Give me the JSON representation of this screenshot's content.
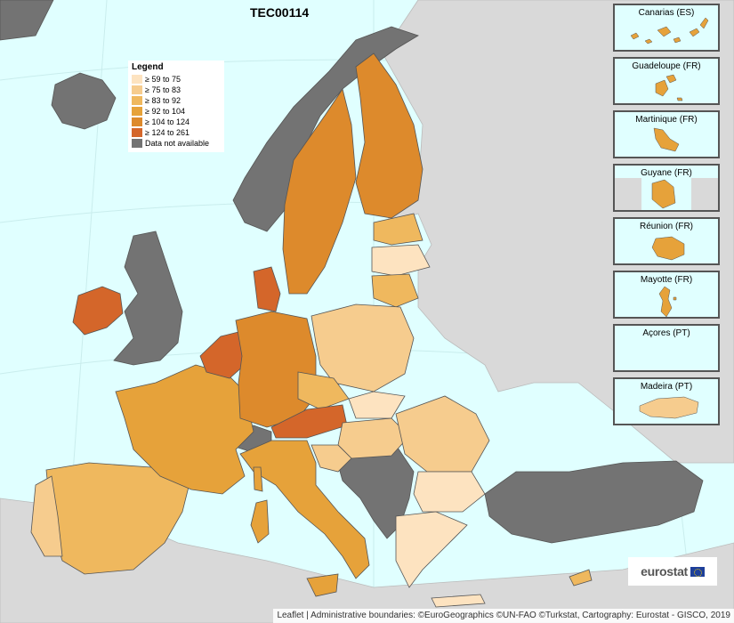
{
  "map": {
    "title": "TEC00114",
    "legend": {
      "title": "Legend",
      "items": [
        {
          "label": "≥ 59 to 75",
          "color": "#fde3c0"
        },
        {
          "label": "≥ 75 to 83",
          "color": "#f6cc8e"
        },
        {
          "label": "≥ 83 to 92",
          "color": "#efb85e"
        },
        {
          "label": "≥ 92 to 104",
          "color": "#e6a23a"
        },
        {
          "label": "≥ 104 to 124",
          "color": "#dd8a2c"
        },
        {
          "label": "≥ 124 to 261",
          "color": "#d4662a"
        },
        {
          "label": "Data not available",
          "color": "#737373"
        }
      ]
    },
    "insets": [
      {
        "label": "Canarias (ES)"
      },
      {
        "label": "Guadeloupe (FR)"
      },
      {
        "label": "Martinique (FR)"
      },
      {
        "label": "Guyane (FR)"
      },
      {
        "label": "Réunion (FR)"
      },
      {
        "label": "Mayotte (FR)"
      },
      {
        "label": "Açores (PT)"
      },
      {
        "label": "Madeira (PT)"
      }
    ],
    "logo_text": "eurostat",
    "attribution": "Leaflet | Administrative boundaries: ©EuroGeographics ©UN-FAO ©Turkstat, Cartography: Eurostat - GISCO, 2019",
    "colors": {
      "sea": "#e0ffff",
      "nonEU": "#d9d9d9",
      "border": "#555555"
    }
  }
}
